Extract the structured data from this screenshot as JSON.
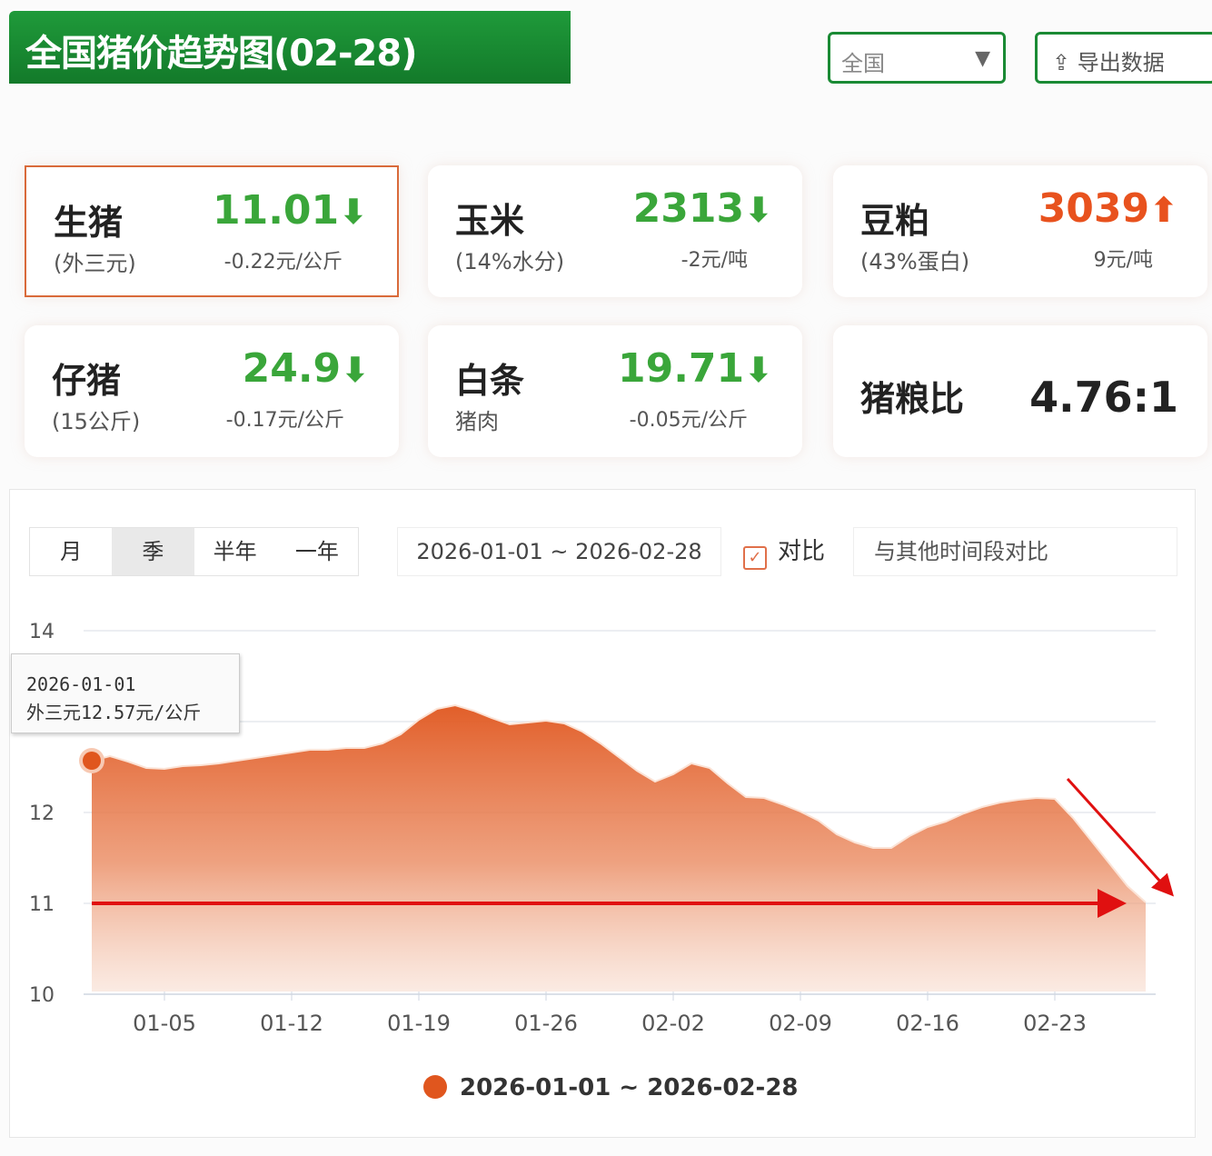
{
  "header": {
    "title": "全国猪价趋势图(02-28)",
    "region_select": "全国",
    "export_label": "导出数据"
  },
  "cards": [
    {
      "name": "生猪",
      "sub": "(外三元)",
      "value": "11.01",
      "change": "-0.22元/公斤",
      "trend": "down"
    },
    {
      "name": "玉米",
      "sub": "(14%水分)",
      "value": "2313",
      "change": "-2元/吨",
      "trend": "down"
    },
    {
      "name": "豆粕",
      "sub": "(43%蛋白)",
      "value": "3039",
      "change": "9元/吨",
      "trend": "up"
    },
    {
      "name": "仔猪",
      "sub": "(15公斤)",
      "value": "24.9",
      "change": "-0.17元/公斤",
      "trend": "down"
    },
    {
      "name": "白条",
      "sub": "猪肉",
      "value": "19.71",
      "change": "-0.05元/公斤",
      "trend": "down"
    },
    {
      "name": "猪粮比",
      "sub": "",
      "value": "4.76:1",
      "change": "",
      "trend": ""
    }
  ],
  "controls": {
    "periods": [
      "月",
      "季",
      "半年",
      "一年"
    ],
    "active_period": "季",
    "range": "2026-01-01 ~ 2026-02-28",
    "compare_label": "对比",
    "compare_checked": true,
    "compare_placeholder": "与其他时间段对比"
  },
  "tooltip": {
    "date": "2026-01-01",
    "text": "外三元12.57元/公斤"
  },
  "colors": {
    "brand_green": "#1a8a34",
    "series": "#e0561e",
    "down": "#3aa63a",
    "up": "#e8521e",
    "annotation": "#e01010"
  },
  "chart_data": {
    "type": "area",
    "x_start": "2026-01-01",
    "x_end": "2026-02-28",
    "xticks": [
      "01-05",
      "01-12",
      "01-19",
      "01-26",
      "02-02",
      "02-09",
      "02-16",
      "02-23"
    ],
    "yticks": [
      10,
      11,
      12,
      14
    ],
    "ylim": [
      10,
      14
    ],
    "grid": true,
    "legend": "bottom",
    "series": [
      {
        "name": "2026-01-01 ~ 2026-02-28",
        "values": [
          12.57,
          12.62,
          12.56,
          12.49,
          12.48,
          12.51,
          12.52,
          12.54,
          12.57,
          12.6,
          12.63,
          12.66,
          12.69,
          12.69,
          12.71,
          12.71,
          12.76,
          12.86,
          13.02,
          13.14,
          13.18,
          13.12,
          13.04,
          12.97,
          12.99,
          13.01,
          12.98,
          12.89,
          12.76,
          12.61,
          12.46,
          12.34,
          12.42,
          12.54,
          12.49,
          12.32,
          12.17,
          12.16,
          12.09,
          12.01,
          11.91,
          11.76,
          11.67,
          11.61,
          11.61,
          11.74,
          11.84,
          11.9,
          11.99,
          12.06,
          12.11,
          12.14,
          12.16,
          12.15,
          11.94,
          11.69,
          11.44,
          11.19,
          11.01
        ]
      }
    ]
  }
}
